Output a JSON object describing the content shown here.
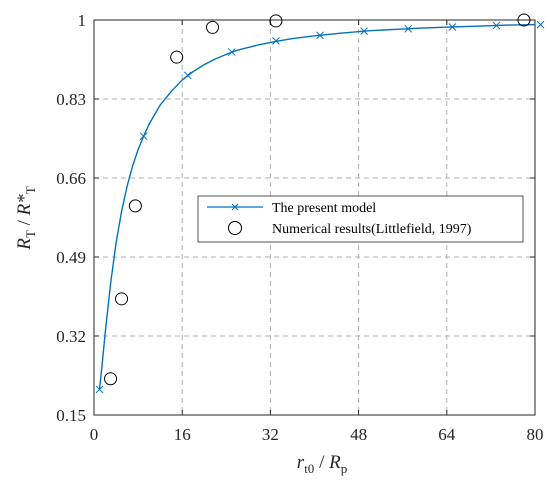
{
  "chart_data": {
    "type": "line",
    "xlabel": {
      "main": "r",
      "sub": "t0",
      "sep": " / ",
      "main2": "R",
      "sub2": "p"
    },
    "ylabel": {
      "main": "R",
      "sub": "T",
      "sep": " / ",
      "main2": "R*",
      "sub2": "T"
    },
    "xlim": [
      0,
      80
    ],
    "ylim": [
      0.15,
      1
    ],
    "xticks": [
      0,
      16,
      32,
      48,
      64,
      80
    ],
    "yticks": [
      0.15,
      0.32,
      0.49,
      0.66,
      0.83,
      1
    ],
    "ytick_labels": [
      "0.15",
      "0.32",
      "0.49",
      "0.66",
      "0.83",
      "1"
    ],
    "grid": true,
    "legend_position": "center-right",
    "colors": {
      "model": "#0072BD",
      "numerical": "#000000",
      "grid": "#b0b0b0",
      "axes": "#262626"
    },
    "series": [
      {
        "name": "The present model",
        "style": "line-with-x-markers",
        "curve_x": [
          1,
          1.5,
          2,
          3,
          4,
          5,
          6,
          7,
          8,
          9,
          10,
          12,
          14,
          16,
          18,
          20,
          22,
          24,
          26,
          28,
          30,
          33,
          36,
          40,
          45,
          50,
          55,
          60,
          65,
          70,
          75,
          80
        ],
        "curve_y": [
          0.205,
          0.262,
          0.323,
          0.432,
          0.52,
          0.588,
          0.642,
          0.686,
          0.721,
          0.75,
          0.776,
          0.817,
          0.846,
          0.871,
          0.889,
          0.904,
          0.916,
          0.926,
          0.935,
          0.941,
          0.947,
          0.954,
          0.96,
          0.966,
          0.972,
          0.977,
          0.98,
          0.983,
          0.985,
          0.987,
          0.989,
          0.99
        ],
        "marker_x": [
          1,
          9,
          17,
          25,
          33,
          41,
          49,
          57,
          65,
          73,
          81
        ],
        "marker_y": [
          0.205,
          0.75,
          0.881,
          0.931,
          0.955,
          0.967,
          0.976,
          0.981,
          0.985,
          0.988,
          0.99
        ]
      },
      {
        "name": "Numerical results(Littlefield, 1997)",
        "style": "open-circles",
        "x": [
          3,
          5,
          7.5,
          15,
          21.5,
          33,
          78
        ],
        "y": [
          0.228,
          0.4,
          0.6,
          0.92,
          0.984,
          0.998,
          1.0
        ]
      }
    ]
  }
}
